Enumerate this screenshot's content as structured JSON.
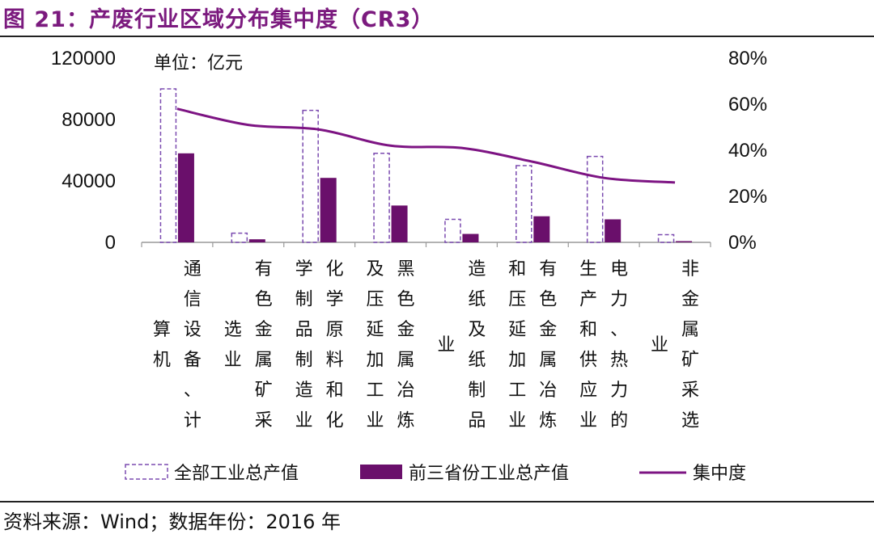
{
  "header": {
    "title": "图 21：产废行业区域分布集中度（CR3）"
  },
  "footer": {
    "source": "资料来源：Wind；数据年份：2016 年"
  },
  "colors": {
    "accent": "#7b1a7e",
    "bar_outline": "#7b4bb0",
    "bar_fill": "#6a0f6b",
    "line": "#7d1483"
  },
  "chart_data": {
    "type": "bar",
    "unit_label": "单位：亿元",
    "categories": [
      "通信设备、计算机",
      "有色金属矿采选业",
      "化学原料和化学制品制造业",
      "黑色金属冶炼及压延加工业",
      "造纸及纸制品业",
      "有色金属冶炼和压延加工业",
      "电力、热力的生产和供应业",
      "非金属矿采选业"
    ],
    "series": [
      {
        "name": "全部工业总产值",
        "style": "dashed-outline",
        "axis": "left",
        "values": [
          100000,
          6000,
          86000,
          58000,
          15000,
          50000,
          56000,
          5000
        ]
      },
      {
        "name": "前三省份工业总产值",
        "style": "filled",
        "axis": "left",
        "values": [
          58000,
          2000,
          42000,
          24000,
          5500,
          17000,
          15000,
          800
        ]
      },
      {
        "name": "集中度",
        "style": "line",
        "axis": "right",
        "values": [
          0.58,
          0.51,
          0.49,
          0.42,
          0.41,
          0.35,
          0.28,
          0.26
        ]
      }
    ],
    "y_left": {
      "ticks": [
        "0",
        "40000",
        "80000",
        "120000"
      ],
      "lim": [
        0,
        120000
      ]
    },
    "y_right": {
      "ticks": [
        "0%",
        "20%",
        "40%",
        "60%",
        "80%"
      ],
      "lim": [
        0,
        0.8
      ]
    },
    "category_label_columns": [
      [
        "通信设备、计",
        "算机"
      ],
      [
        "有色金属矿采",
        "选业"
      ],
      [
        "化学原料和化",
        "学制品制造业"
      ],
      [
        "黑色金属冶炼",
        "及压延加工业"
      ],
      [
        "造纸及纸制品",
        "业"
      ],
      [
        "有色金属冶炼",
        "和压延加工业"
      ],
      [
        "电力、热力的",
        "生产和供应业"
      ],
      [
        "非金属矿采选",
        "业"
      ]
    ],
    "legend_position": "bottom"
  }
}
